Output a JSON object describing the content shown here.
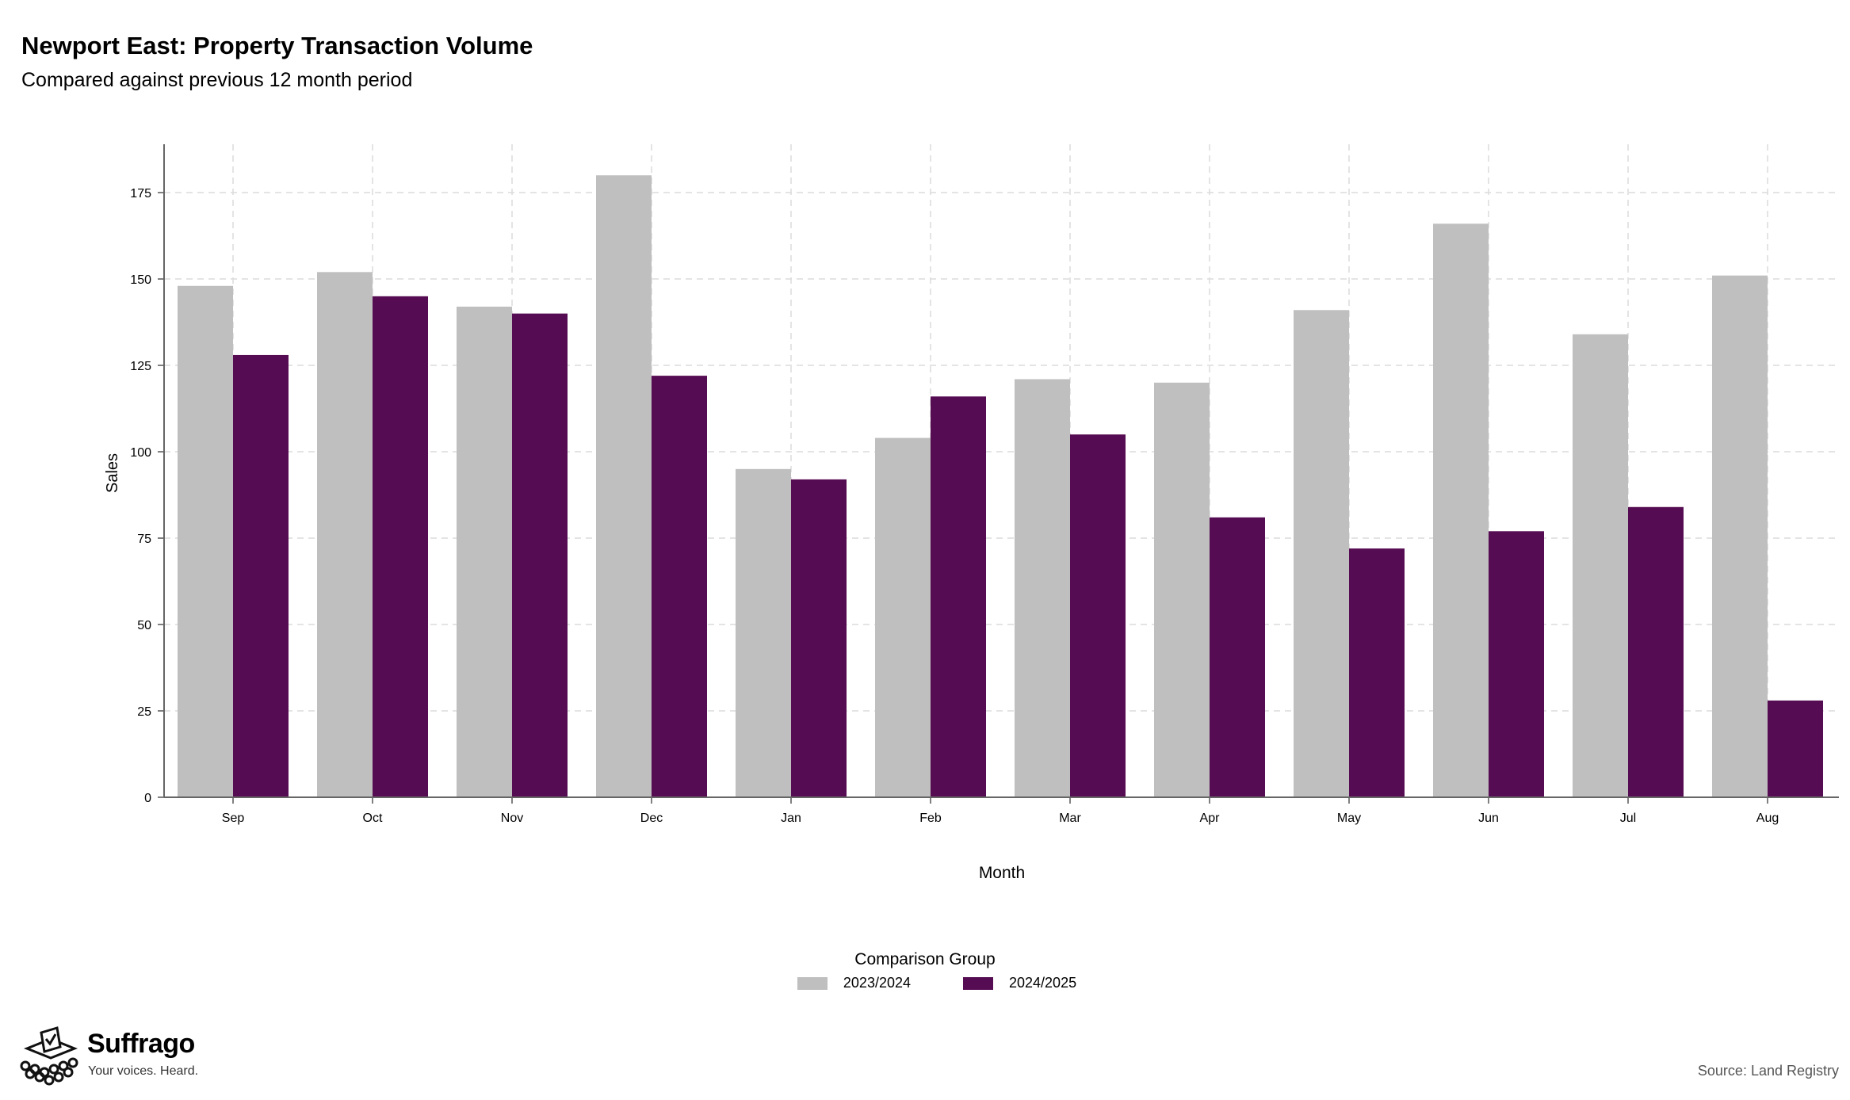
{
  "header": {
    "title": "Newport East: Property Transaction Volume",
    "subtitle": "Compared against previous 12 month period"
  },
  "legend": {
    "title": "Comparison Group",
    "items": [
      {
        "label": "2023/2024",
        "color": "#bfbfbf"
      },
      {
        "label": "2024/2025",
        "color": "#560c52"
      }
    ]
  },
  "footer": {
    "brand": "Suffrago",
    "tagline": "Your voices. Heard.",
    "source": "Source: Land Registry"
  },
  "chart_data": {
    "type": "bar",
    "xlabel": "Month",
    "ylabel": "Sales",
    "ylim": [
      0,
      189
    ],
    "yticks": [
      0,
      25,
      50,
      75,
      100,
      125,
      150,
      175
    ],
    "grid": true,
    "legend_position": "bottom",
    "categories": [
      "Sep",
      "Oct",
      "Nov",
      "Dec",
      "Jan",
      "Feb",
      "Mar",
      "Apr",
      "May",
      "Jun",
      "Jul",
      "Aug"
    ],
    "series": [
      {
        "name": "2023/2024",
        "color": "#bfbfbf",
        "values": [
          148,
          152,
          142,
          180,
          95,
          104,
          121,
          120,
          141,
          166,
          134,
          151
        ]
      },
      {
        "name": "2024/2025",
        "color": "#560c52",
        "values": [
          128,
          145,
          140,
          122,
          92,
          116,
          105,
          81,
          72,
          77,
          84,
          28
        ]
      }
    ]
  }
}
